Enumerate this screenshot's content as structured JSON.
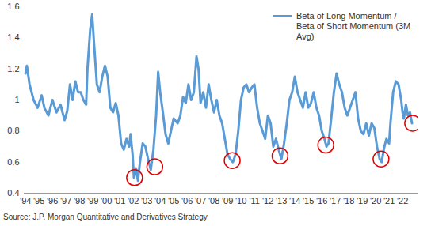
{
  "chart_data": {
    "type": "line",
    "source": "Source: J.P. Morgan Quantitative and Derivatives Strategy",
    "legend": "top-right",
    "grid": false,
    "xlim": [
      1993.9,
      2023.2
    ],
    "ylim": [
      0.4,
      1.6
    ],
    "yticks": [
      0.4,
      0.6,
      0.8,
      1,
      1.2,
      1.4,
      1.6
    ],
    "xticks": [
      {
        "value": 1994,
        "label": "'94"
      },
      {
        "value": 1995,
        "label": "'95"
      },
      {
        "value": 1996,
        "label": "'96"
      },
      {
        "value": 1997,
        "label": "'97"
      },
      {
        "value": 1998,
        "label": "'98"
      },
      {
        "value": 1999,
        "label": "'99"
      },
      {
        "value": 2000,
        "label": "'00"
      },
      {
        "value": 2001,
        "label": "'01"
      },
      {
        "value": 2002,
        "label": "'02"
      },
      {
        "value": 2003,
        "label": "'03"
      },
      {
        "value": 2004,
        "label": "'04"
      },
      {
        "value": 2005,
        "label": "'05"
      },
      {
        "value": 2006,
        "label": "'06"
      },
      {
        "value": 2007,
        "label": "'07"
      },
      {
        "value": 2008,
        "label": "'08"
      },
      {
        "value": 2009,
        "label": "'09"
      },
      {
        "value": 2010,
        "label": "'10"
      },
      {
        "value": 2011,
        "label": "'11"
      },
      {
        "value": 2012,
        "label": "'12"
      },
      {
        "value": 2013,
        "label": "'13"
      },
      {
        "value": 2014,
        "label": "'14"
      },
      {
        "value": 2015,
        "label": "'15"
      },
      {
        "value": 2016,
        "label": "'16"
      },
      {
        "value": 2017,
        "label": "'17"
      },
      {
        "value": 2018,
        "label": "'18"
      },
      {
        "value": 2019,
        "label": "'19"
      },
      {
        "value": 2020,
        "label": "'20"
      },
      {
        "value": 2021,
        "label": "'21"
      },
      {
        "value": 2022,
        "label": "'22"
      }
    ],
    "x": [
      1994.0,
      1994.1,
      1994.3,
      1994.6,
      1994.9,
      1995.2,
      1995.4,
      1995.7,
      1996.0,
      1996.3,
      1996.6,
      1996.9,
      1997.1,
      1997.3,
      1997.5,
      1997.7,
      1997.9,
      1998.1,
      1998.3,
      1998.5,
      1998.6,
      1998.8,
      1998.95,
      1999.1,
      1999.3,
      1999.5,
      1999.7,
      1999.9,
      2000.1,
      2000.3,
      2000.5,
      2000.7,
      2000.9,
      2001.1,
      2001.3,
      2001.5,
      2001.7,
      2001.8,
      2001.95,
      2002.05,
      2002.2,
      2002.35,
      2002.5,
      2002.7,
      2002.9,
      2003.1,
      2003.3,
      2003.5,
      2003.7,
      2003.85,
      2004.0,
      2004.2,
      2004.4,
      2004.6,
      2004.8,
      2005.0,
      2005.3,
      2005.5,
      2005.7,
      2005.9,
      2006.1,
      2006.3,
      2006.5,
      2006.7,
      2006.85,
      2007.0,
      2007.2,
      2007.4,
      2007.6,
      2007.8,
      2008.0,
      2008.2,
      2008.4,
      2008.6,
      2008.8,
      2009.0,
      2009.2,
      2009.4,
      2009.6,
      2009.8,
      2010.0,
      2010.2,
      2010.4,
      2010.6,
      2010.8,
      2011.0,
      2011.2,
      2011.4,
      2011.6,
      2011.8,
      2012.0,
      2012.2,
      2012.4,
      2012.6,
      2012.8,
      2013.0,
      2013.2,
      2013.4,
      2013.6,
      2013.8,
      2014.0,
      2014.2,
      2014.4,
      2014.6,
      2014.8,
      2015.0,
      2015.2,
      2015.4,
      2015.6,
      2015.8,
      2016.0,
      2016.2,
      2016.35,
      2016.5,
      2016.7,
      2016.9,
      2017.1,
      2017.3,
      2017.5,
      2017.7,
      2017.9,
      2018.1,
      2018.3,
      2018.5,
      2018.7,
      2018.9,
      2019.1,
      2019.3,
      2019.5,
      2019.7,
      2019.9,
      2020.1,
      2020.3,
      2020.45,
      2020.6,
      2020.8,
      2021.0,
      2021.1,
      2021.3,
      2021.5,
      2021.7,
      2021.9,
      2022.0,
      2022.1,
      2022.25,
      2022.4,
      2022.55,
      2022.7
    ],
    "series": [
      {
        "name": "Beta of Long Momentum / Beta of Short Momentum (3M Avg)",
        "color": "#5b9bd5",
        "values": [
          1.17,
          1.22,
          1.1,
          1.0,
          0.95,
          1.03,
          0.95,
          0.9,
          1.0,
          0.92,
          0.97,
          0.87,
          0.93,
          1.1,
          1.0,
          1.12,
          1.05,
          1.05,
          1.0,
          0.97,
          1.2,
          1.45,
          1.55,
          1.35,
          1.1,
          1.05,
          1.15,
          1.22,
          1.15,
          0.95,
          0.92,
          0.98,
          0.9,
          0.72,
          0.68,
          0.75,
          0.7,
          0.78,
          0.65,
          0.5,
          0.56,
          0.48,
          0.6,
          0.72,
          0.7,
          0.62,
          0.55,
          0.68,
          0.9,
          1.18,
          1.05,
          0.92,
          0.78,
          0.72,
          0.8,
          0.88,
          0.85,
          0.9,
          1.02,
          0.98,
          1.1,
          1.0,
          1.05,
          1.28,
          1.2,
          0.98,
          1.05,
          0.95,
          1.1,
          1.0,
          0.92,
          1.0,
          0.9,
          0.85,
          0.75,
          0.65,
          0.62,
          0.6,
          0.65,
          0.8,
          1.0,
          1.08,
          1.1,
          1.05,
          1.08,
          1.1,
          0.95,
          0.85,
          0.8,
          0.75,
          0.9,
          0.85,
          0.7,
          0.75,
          0.68,
          0.62,
          0.72,
          0.85,
          1.0,
          1.05,
          1.15,
          1.05,
          1.0,
          0.95,
          1.05,
          0.95,
          0.98,
          1.05,
          0.95,
          0.9,
          0.8,
          0.75,
          0.7,
          0.72,
          0.88,
          1.05,
          1.17,
          1.1,
          1.05,
          0.95,
          0.9,
          0.95,
          1.0,
          1.05,
          0.88,
          0.8,
          0.78,
          0.85,
          0.77,
          0.85,
          0.82,
          0.7,
          0.62,
          0.6,
          0.68,
          0.75,
          0.72,
          0.85,
          1.05,
          1.12,
          1.1,
          1.0,
          0.92,
          0.88,
          0.97,
          0.9,
          0.92,
          0.85
        ]
      }
    ],
    "highlights": {
      "color": "#e00000",
      "marker": "circle",
      "x": [
        2002.1,
        2003.6,
        2009.35,
        2012.9,
        2016.3,
        2020.4,
        2022.75
      ],
      "y": [
        0.5,
        0.57,
        0.61,
        0.64,
        0.71,
        0.62,
        0.85
      ]
    }
  }
}
